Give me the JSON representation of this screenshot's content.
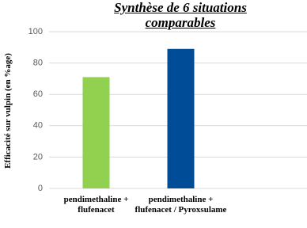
{
  "chart_data": {
    "type": "bar",
    "title": "Synthèse de 6 situations comparables",
    "y_label": "Efficacité sur vulpin (en %age)",
    "categories": [
      "pendimethaline + flufenacet",
      "pendimethaline + flufenacet / Pyroxsulame"
    ],
    "values": [
      71,
      89
    ],
    "colors": [
      "#92d050",
      "#004c97"
    ],
    "ylim": [
      0,
      100
    ],
    "yticks": [
      0,
      20,
      40,
      60,
      80,
      100
    ],
    "grid": true
  }
}
